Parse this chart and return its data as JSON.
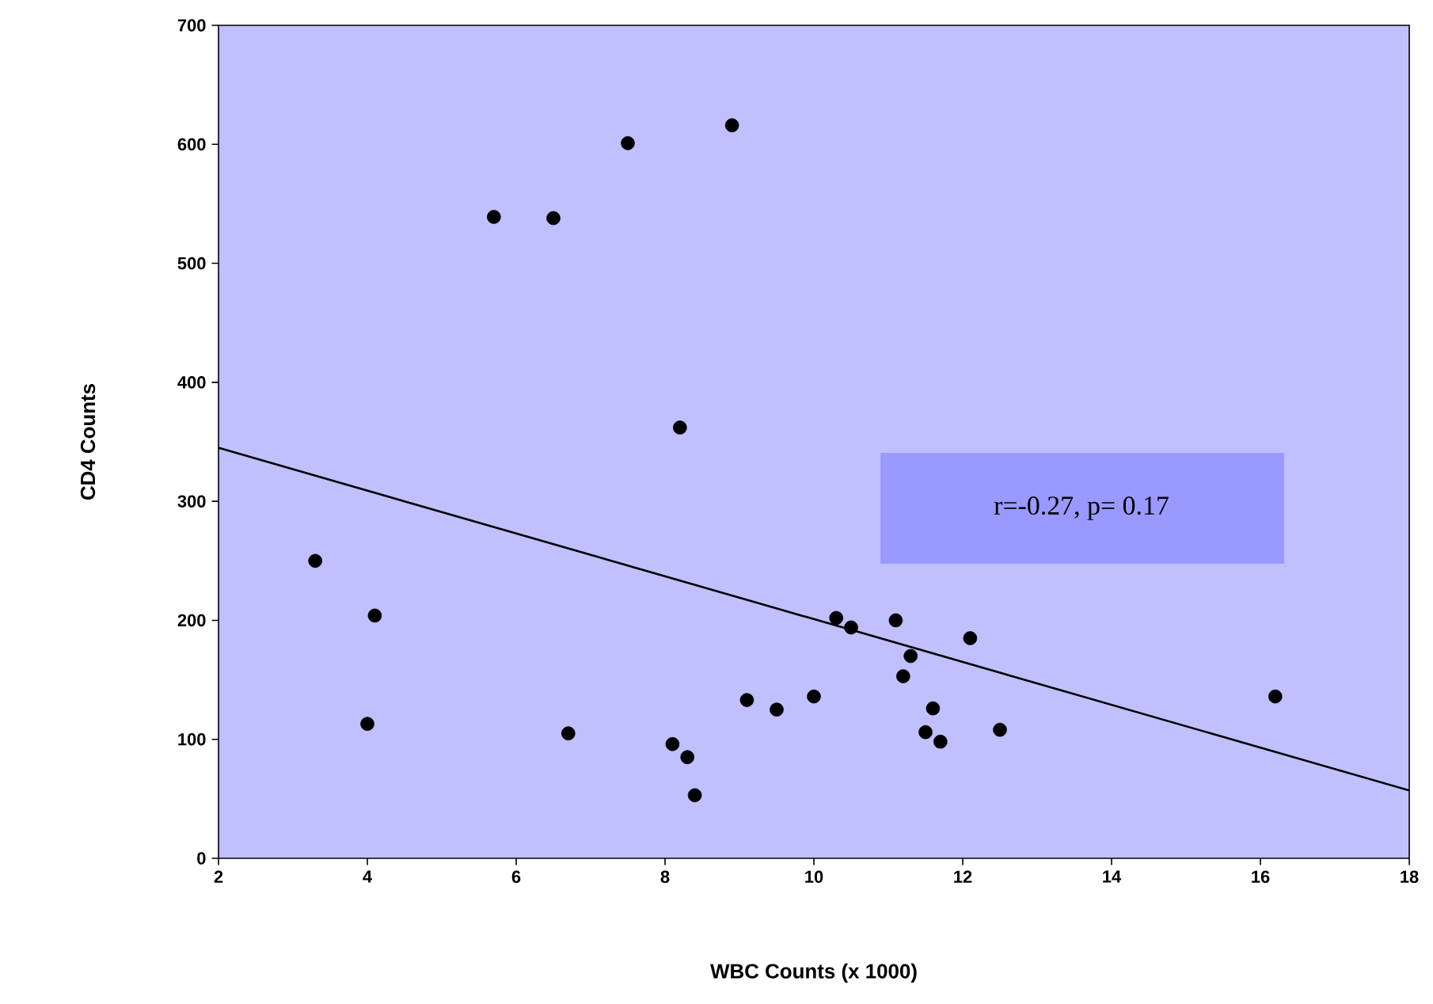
{
  "chart_data": {
    "type": "scatter",
    "xlabel": "WBC Counts (x 1000)",
    "ylabel": "CD4 Counts",
    "xlim": [
      2,
      18
    ],
    "ylim": [
      0,
      700
    ],
    "xticks": [
      2,
      4,
      6,
      8,
      10,
      12,
      14,
      16,
      18
    ],
    "yticks": [
      0,
      100,
      200,
      300,
      400,
      500,
      600,
      700
    ],
    "grid": false,
    "annotations": [
      "r=-0.27, p= 0.17"
    ],
    "series": [
      {
        "marker": "circle",
        "color": "#000000",
        "x": [
          3.3,
          4.1,
          4.0,
          5.7,
          6.5,
          7.5,
          8.9,
          8.2,
          6.7,
          8.1,
          8.3,
          8.4,
          9.1,
          9.5,
          10.0,
          10.3,
          10.5,
          11.1,
          11.3,
          11.2,
          12.1,
          11.6,
          11.5,
          11.7,
          12.5,
          16.2
        ],
        "values": [
          250,
          204,
          113,
          539,
          538,
          601,
          616,
          362,
          105,
          96,
          85,
          53,
          133,
          125,
          136,
          202,
          194,
          200,
          170,
          153,
          185,
          126,
          106,
          98,
          108,
          136
        ]
      },
      {
        "type": "line",
        "marker": "none",
        "color": "#000000",
        "x": [
          2,
          18
        ],
        "values": [
          345,
          57
        ]
      }
    ]
  }
}
